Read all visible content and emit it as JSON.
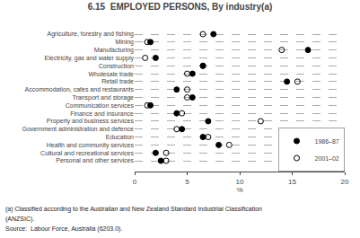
{
  "chart_data": {
    "type": "scatter",
    "orientation": "horizontal",
    "title": "6.15  EMPLOYED PERSONS, By industry(a)",
    "categories": [
      "Agriculture, forestry and fishing",
      "Mining",
      "Manufacturing",
      "Electricity, gas and water supply",
      "Construction",
      "Wholesale trade",
      "Retail trade",
      "Accommodation, cafes and restaurants",
      "Transport and storage",
      "Communication services",
      "Finance and insurance",
      "Property and business services",
      "Government administration and defence",
      "Education",
      "Health and community services",
      "Cultural and recreational services",
      "Personal and other services"
    ],
    "series": [
      {
        "name": "1986–87",
        "color": "#000000",
        "marker": "circle",
        "values": [
          7.5,
          1.5,
          16.5,
          2.0,
          6.5,
          5.5,
          14.5,
          4.0,
          5.5,
          1.5,
          4.0,
          7.0,
          4.5,
          6.5,
          8.0,
          2.0,
          2.5
        ]
      },
      {
        "name": "2001–02",
        "color": "#000000",
        "marker": "circle-open",
        "values": [
          6.5,
          1.2,
          14.0,
          1.0,
          6.5,
          5.0,
          15.5,
          5.0,
          5.0,
          1.2,
          4.5,
          12.0,
          4.0,
          7.0,
          9.0,
          3.0,
          3.0
        ]
      }
    ],
    "xlabel": "%",
    "xlim": [
      0,
      20
    ],
    "xticks": [
      0,
      5,
      10,
      15,
      20
    ],
    "grid": true,
    "legend": "lower right",
    "annotations": [
      "(a) Classified according to the Australian and New Zealand Standard Industrial Classification",
      "(ANZSIC).",
      "Source:  Labour Force, Australia (6203.0)."
    ]
  }
}
